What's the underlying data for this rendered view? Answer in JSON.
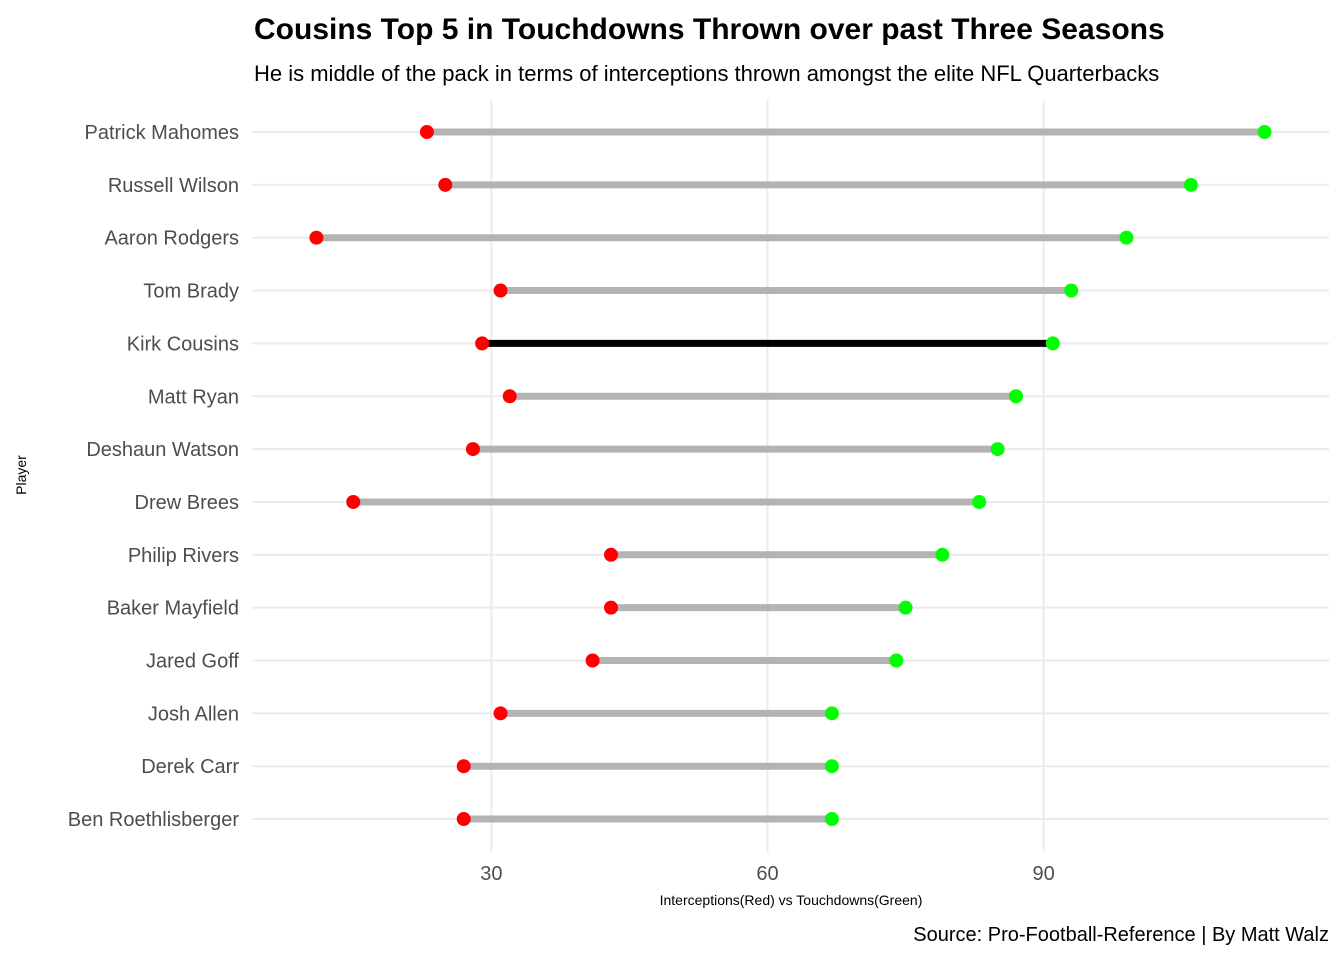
{
  "chart_data": {
    "type": "dumbbell",
    "title": "Cousins Top 5 in Touchdowns Thrown over past Three Seasons",
    "subtitle": "He is middle of the pack in terms of interceptions thrown amongst the elite NFL Quarterbacks",
    "caption": "Source: Pro-Football-Reference | By Matt Walz",
    "xlabel": "Interceptions(Red) vs Touchdowns(Green)",
    "ylabel": "Player",
    "xlim": [
      4,
      121
    ],
    "xticks": [
      30,
      60,
      90
    ],
    "grid": true,
    "highlight": "Kirk Cousins",
    "colors": {
      "interceptions": "#ff0000",
      "touchdowns": "#00ff00",
      "segment": "#b3b3b3",
      "highlight_segment": "#000000"
    },
    "players": [
      {
        "name": "Patrick Mahomes",
        "interceptions": 23,
        "touchdowns": 114
      },
      {
        "name": "Russell Wilson",
        "interceptions": 25,
        "touchdowns": 106
      },
      {
        "name": "Aaron Rodgers",
        "interceptions": 11,
        "touchdowns": 99
      },
      {
        "name": "Tom Brady",
        "interceptions": 31,
        "touchdowns": 93
      },
      {
        "name": "Kirk Cousins",
        "interceptions": 29,
        "touchdowns": 91
      },
      {
        "name": "Matt Ryan",
        "interceptions": 32,
        "touchdowns": 87
      },
      {
        "name": "Deshaun Watson",
        "interceptions": 28,
        "touchdowns": 85
      },
      {
        "name": "Drew Brees",
        "interceptions": 15,
        "touchdowns": 83
      },
      {
        "name": "Philip Rivers",
        "interceptions": 43,
        "touchdowns": 79
      },
      {
        "name": "Baker Mayfield",
        "interceptions": 43,
        "touchdowns": 75
      },
      {
        "name": "Jared Goff",
        "interceptions": 41,
        "touchdowns": 74
      },
      {
        "name": "Josh Allen",
        "interceptions": 31,
        "touchdowns": 67
      },
      {
        "name": "Derek Carr",
        "interceptions": 27,
        "touchdowns": 67
      },
      {
        "name": "Ben Roethlisberger",
        "interceptions": 27,
        "touchdowns": 67
      }
    ]
  }
}
